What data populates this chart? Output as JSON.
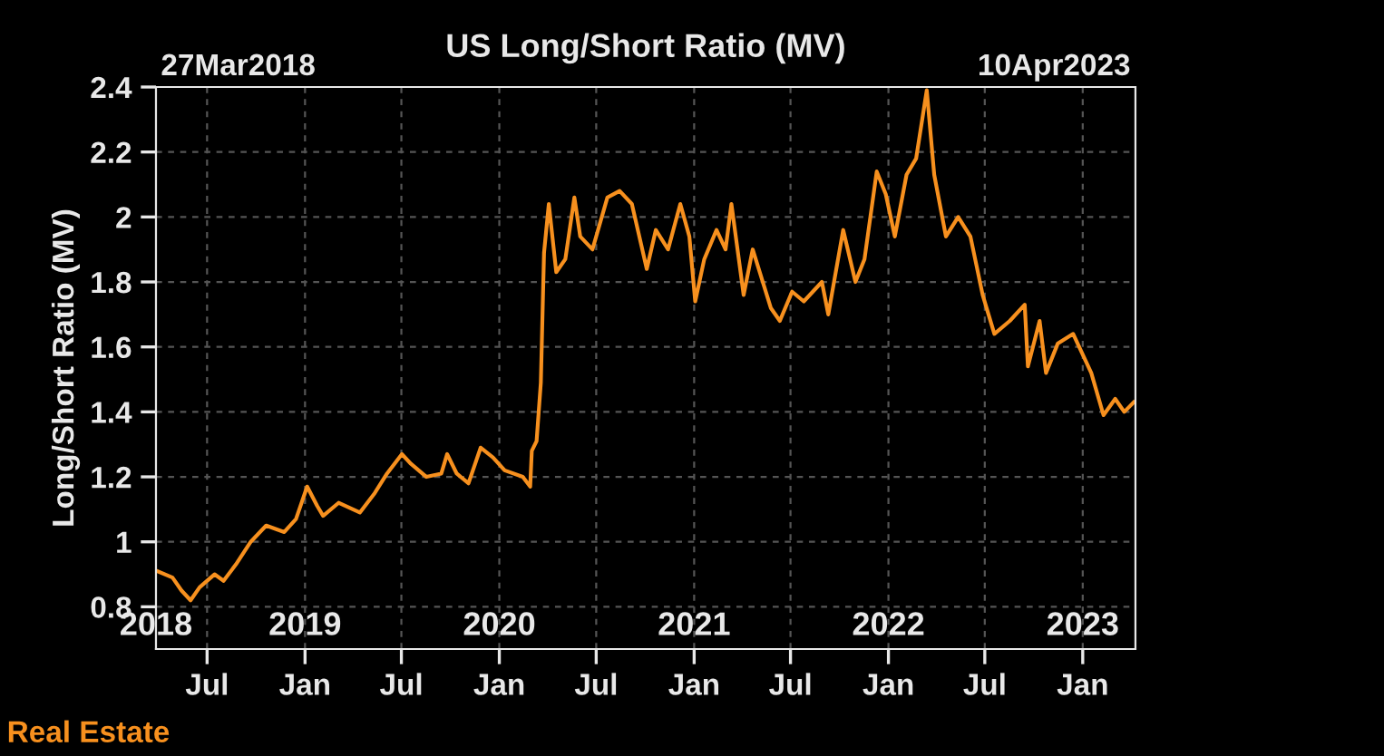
{
  "chart_data": {
    "type": "line",
    "title": "US Long/Short Ratio (MV)",
    "ylabel": "Long/Short Ratio (MV)",
    "annotations": [
      "27Mar2018",
      "10Apr2023"
    ],
    "legend": "bottom left",
    "grid": true,
    "line_style": "solid",
    "xlim": [
      "2018-03-27",
      "2023-04-10"
    ],
    "ylim": [
      0.67,
      2.4
    ],
    "yticks": [
      0.8,
      1,
      1.2,
      1.4,
      1.6,
      1.8,
      2,
      2.2,
      2.4
    ],
    "xticks": [
      {
        "value": "2018-07-01",
        "label": "Jul"
      },
      {
        "value": "2019-01-01",
        "label": "Jan"
      },
      {
        "value": "2019-07-01",
        "label": "Jul"
      },
      {
        "value": "2020-01-01",
        "label": "Jan"
      },
      {
        "value": "2020-07-01",
        "label": "Jul"
      },
      {
        "value": "2021-01-01",
        "label": "Jan"
      },
      {
        "value": "2021-07-01",
        "label": "Jul"
      },
      {
        "value": "2022-01-01",
        "label": "Jan"
      },
      {
        "value": "2022-07-01",
        "label": "Jul"
      },
      {
        "value": "2023-01-01",
        "label": "Jan"
      }
    ],
    "x2lim": [
      "2018-03-27",
      "2023-04-10"
    ],
    "x2ticks": [
      {
        "value": "2018-03-27",
        "label": "2018"
      },
      {
        "value": "2019-01-01",
        "label": "2019"
      },
      {
        "value": "2020-01-01",
        "label": "2020"
      },
      {
        "value": "2021-01-01",
        "label": "2021"
      },
      {
        "value": "2022-01-01",
        "label": "2022"
      },
      {
        "value": "2023-01-01",
        "label": "2023"
      }
    ],
    "series": [
      {
        "name": "Real Estate",
        "color": "#f7901e",
        "x": [
          "2018-03-29",
          "2018-04-27",
          "2018-05-14",
          "2018-05-31",
          "2018-06-17",
          "2018-07-15",
          "2018-08-01",
          "2018-08-24",
          "2018-09-21",
          "2018-10-20",
          "2018-11-23",
          "2018-12-15",
          "2019-01-05",
          "2019-01-24",
          "2019-02-04",
          "2019-03-05",
          "2019-04-14",
          "2019-05-12",
          "2019-06-04",
          "2019-07-02",
          "2019-07-19",
          "2019-08-17",
          "2019-09-14",
          "2019-09-25",
          "2019-10-13",
          "2019-11-04",
          "2019-11-27",
          "2019-12-20",
          "2020-01-11",
          "2020-02-14",
          "2020-02-28",
          "2020-03-02",
          "2020-03-11",
          "2020-03-19",
          "2020-03-25",
          "2020-04-03",
          "2020-04-17",
          "2020-05-04",
          "2020-05-21",
          "2020-06-01",
          "2020-06-24",
          "2020-07-22",
          "2020-08-14",
          "2020-09-06",
          "2020-10-04",
          "2020-10-21",
          "2020-11-13",
          "2020-12-06",
          "2020-12-23",
          "2021-01-03",
          "2021-01-20",
          "2021-02-12",
          "2021-03-01",
          "2021-03-12",
          "2021-04-04",
          "2021-04-21",
          "2021-05-25",
          "2021-06-11",
          "2021-07-04",
          "2021-07-26",
          "2021-08-29",
          "2021-09-10",
          "2021-10-08",
          "2021-10-31",
          "2021-11-17",
          "2021-12-10",
          "2021-12-27",
          "2022-01-13",
          "2022-02-04",
          "2022-02-22",
          "2022-03-14",
          "2022-03-28",
          "2022-04-19",
          "2022-05-12",
          "2022-06-04",
          "2022-06-27",
          "2022-07-19",
          "2022-08-17",
          "2022-09-14",
          "2022-09-20",
          "2022-10-12",
          "2022-10-24",
          "2022-11-15",
          "2022-12-14",
          "2023-01-17",
          "2023-02-09",
          "2023-03-03",
          "2023-03-20",
          "2023-04-07"
        ],
        "values": [
          0.91,
          0.89,
          0.85,
          0.82,
          0.86,
          0.9,
          0.88,
          0.93,
          1.0,
          1.05,
          1.03,
          1.07,
          1.17,
          1.11,
          1.08,
          1.12,
          1.09,
          1.15,
          1.21,
          1.27,
          1.24,
          1.2,
          1.21,
          1.27,
          1.21,
          1.18,
          1.29,
          1.26,
          1.22,
          1.2,
          1.17,
          1.28,
          1.31,
          1.49,
          1.89,
          2.04,
          1.83,
          1.87,
          2.06,
          1.94,
          1.9,
          2.06,
          2.08,
          2.04,
          1.84,
          1.96,
          1.9,
          2.04,
          1.94,
          1.74,
          1.87,
          1.96,
          1.9,
          2.04,
          1.76,
          1.9,
          1.72,
          1.68,
          1.77,
          1.74,
          1.8,
          1.7,
          1.96,
          1.8,
          1.87,
          2.14,
          2.07,
          1.94,
          2.13,
          2.18,
          2.39,
          2.13,
          1.94,
          2.0,
          1.94,
          1.76,
          1.64,
          1.68,
          1.73,
          1.54,
          1.68,
          1.52,
          1.61,
          1.64,
          1.52,
          1.39,
          1.44,
          1.4,
          1.43
        ]
      }
    ]
  }
}
